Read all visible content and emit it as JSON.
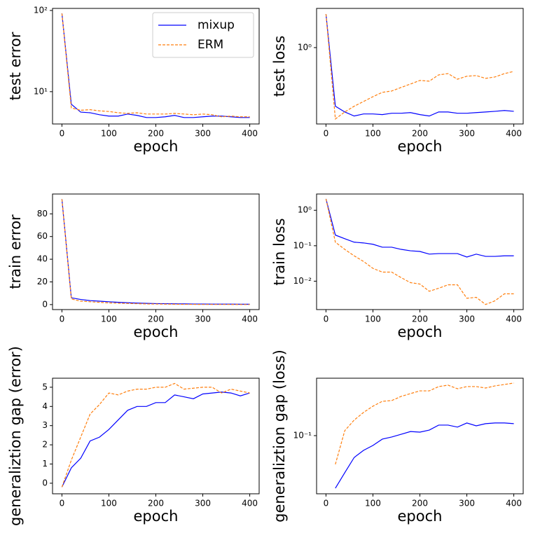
{
  "chart_data": [
    {
      "type": "line",
      "ylabel": "test error",
      "xlabel": "epoch",
      "log_y": true,
      "legend": "upper right",
      "x": [
        0,
        20,
        40,
        60,
        80,
        100,
        120,
        140,
        160,
        180,
        200,
        220,
        240,
        260,
        280,
        300,
        320,
        340,
        360,
        380,
        400
      ],
      "xlim": [
        -20,
        420
      ],
      "xticks": [
        0,
        100,
        200,
        300,
        400
      ],
      "ylim": [
        4,
        106
      ],
      "yticks": [
        {
          "value": 10,
          "label": "10¹"
        },
        {
          "value": 100,
          "label": "10²"
        }
      ],
      "series": [
        {
          "name": "mixup",
          "color": "#0000ff",
          "linestyle": "solid",
          "values": [
            92,
            7,
            5.6,
            5.5,
            5.2,
            5.0,
            5.0,
            5.3,
            5.1,
            4.8,
            4.8,
            4.9,
            5.1,
            4.8,
            4.8,
            4.9,
            5.0,
            5.0,
            4.9,
            4.8,
            4.8
          ]
        },
        {
          "name": "ERM",
          "color": "#ff7f0e",
          "linestyle": "dashed",
          "values": [
            92,
            6.3,
            5.9,
            6.0,
            5.8,
            5.7,
            5.5,
            5.4,
            5.5,
            5.3,
            5.3,
            5.3,
            5.4,
            5.3,
            5.2,
            5.3,
            5.2,
            4.9,
            5.0,
            4.9,
            4.9
          ]
        }
      ]
    },
    {
      "type": "line",
      "ylabel": "test loss",
      "xlabel": "epoch",
      "log_y": true,
      "x": [
        0,
        20,
        40,
        60,
        80,
        100,
        120,
        140,
        160,
        180,
        200,
        220,
        240,
        260,
        280,
        300,
        320,
        340,
        360,
        380,
        400
      ],
      "xlim": [
        -20,
        420
      ],
      "xticks": [
        0,
        100,
        200,
        300,
        400
      ],
      "ylim": [
        0.123,
        2.93
      ],
      "yticks": [
        {
          "value": 1,
          "label": "10⁰"
        }
      ],
      "series": [
        {
          "color": "#0000ff",
          "linestyle": "solid",
          "values": [
            2.51,
            0.2,
            0.171,
            0.153,
            0.162,
            0.162,
            0.159,
            0.165,
            0.165,
            0.168,
            0.159,
            0.153,
            0.171,
            0.171,
            0.165,
            0.165,
            0.168,
            0.171,
            0.174,
            0.178,
            0.174
          ]
        },
        {
          "color": "#ff7f0e",
          "linestyle": "dashed",
          "values": [
            2.51,
            0.141,
            0.171,
            0.2,
            0.228,
            0.26,
            0.293,
            0.304,
            0.335,
            0.368,
            0.406,
            0.398,
            0.473,
            0.49,
            0.42,
            0.456,
            0.464,
            0.43,
            0.447,
            0.49,
            0.52
          ]
        }
      ]
    },
    {
      "type": "line",
      "ylabel": "train error",
      "xlabel": "epoch",
      "log_y": false,
      "x": [
        0,
        20,
        40,
        60,
        80,
        100,
        120,
        140,
        160,
        180,
        200,
        220,
        240,
        260,
        280,
        300,
        320,
        340,
        360,
        380,
        400
      ],
      "xlim": [
        -20,
        420
      ],
      "xticks": [
        0,
        100,
        200,
        300,
        400
      ],
      "ylim": [
        -4.4,
        97.5
      ],
      "yticks": [
        0,
        20,
        40,
        60,
        80
      ],
      "series": [
        {
          "color": "#0000ff",
          "linestyle": "solid",
          "values": [
            93,
            6,
            4.5,
            3.5,
            3,
            2.5,
            2,
            1.6,
            1.3,
            1.1,
            0.9,
            0.8,
            0.7,
            0.6,
            0.5,
            0.5,
            0.4,
            0.4,
            0.4,
            0.3,
            0.3
          ]
        },
        {
          "color": "#ff7f0e",
          "linestyle": "dashed",
          "values": [
            93,
            5,
            3,
            2.5,
            2,
            1.5,
            1.2,
            1,
            0.8,
            0.6,
            0.5,
            0.4,
            0.3,
            0.2,
            0.2,
            0.1,
            0.1,
            0.1,
            0.1,
            0.05,
            0.05
          ]
        }
      ]
    },
    {
      "type": "line",
      "ylabel": "train loss",
      "xlabel": "epoch",
      "log_y": true,
      "x": [
        0,
        20,
        40,
        60,
        80,
        100,
        120,
        140,
        160,
        180,
        200,
        220,
        240,
        260,
        280,
        300,
        320,
        340,
        360,
        380,
        400
      ],
      "xlim": [
        -20,
        420
      ],
      "xticks": [
        0,
        100,
        200,
        300,
        400
      ],
      "ylim": [
        0.00158,
        2.88
      ],
      "yticks": [
        {
          "value": 0.01,
          "label": "10⁻²"
        },
        {
          "value": 0.1,
          "label": "10⁻¹"
        },
        {
          "value": 1,
          "label": "10⁰"
        }
      ],
      "series": [
        {
          "color": "#0000ff",
          "linestyle": "solid",
          "values": [
            2.1,
            0.2,
            0.158,
            0.126,
            0.12,
            0.11,
            0.091,
            0.091,
            0.079,
            0.072,
            0.069,
            0.058,
            0.06,
            0.06,
            0.06,
            0.048,
            0.058,
            0.05,
            0.05,
            0.052,
            0.052
          ]
        },
        {
          "color": "#ff7f0e",
          "linestyle": "dashed",
          "values": [
            2.1,
            0.126,
            0.079,
            0.052,
            0.036,
            0.023,
            0.018,
            0.018,
            0.0126,
            0.0091,
            0.0083,
            0.0052,
            0.0063,
            0.0079,
            0.0079,
            0.0033,
            0.0035,
            0.0022,
            0.0028,
            0.0044,
            0.0044
          ]
        }
      ]
    },
    {
      "type": "line",
      "ylabel": "generaliztion gap (error)",
      "xlabel": "epoch",
      "log_y": false,
      "x": [
        0,
        20,
        40,
        60,
        80,
        100,
        120,
        140,
        160,
        180,
        200,
        220,
        240,
        260,
        280,
        300,
        320,
        340,
        360,
        380,
        400
      ],
      "xlim": [
        -20,
        420
      ],
      "xticks": [
        0,
        100,
        200,
        300,
        400
      ],
      "ylim": [
        -0.55,
        5.47
      ],
      "yticks": [
        0,
        1,
        2,
        3,
        4,
        5
      ],
      "series": [
        {
          "color": "#0000ff",
          "linestyle": "solid",
          "values": [
            -0.2,
            0.8,
            1.3,
            2.2,
            2.4,
            2.8,
            3.3,
            3.8,
            4.0,
            4.0,
            4.2,
            4.2,
            4.6,
            4.5,
            4.4,
            4.65,
            4.7,
            4.75,
            4.7,
            4.55,
            4.7
          ]
        },
        {
          "color": "#ff7f0e",
          "linestyle": "dashed",
          "values": [
            -0.2,
            1.2,
            2.4,
            3.6,
            4.1,
            4.7,
            4.6,
            4.8,
            4.9,
            4.9,
            5.0,
            5.0,
            5.2,
            4.9,
            4.95,
            5.0,
            5.0,
            4.7,
            4.9,
            4.8,
            4.7
          ]
        }
      ]
    },
    {
      "type": "line",
      "ylabel": "generaliztion gap (loss)",
      "xlabel": "epoch",
      "log_y": true,
      "x": [
        0,
        20,
        40,
        60,
        80,
        100,
        120,
        140,
        160,
        180,
        200,
        220,
        240,
        260,
        280,
        300,
        320,
        340,
        360,
        380,
        400
      ],
      "xlim": [
        -20,
        420
      ],
      "xticks": [
        0,
        100,
        200,
        300,
        400
      ],
      "ylim": [
        0.0176,
        0.556
      ],
      "yticks": [
        {
          "value": 0.1,
          "label": "10⁻¹"
        }
      ],
      "series": [
        {
          "color": "#0000ff",
          "linestyle": "solid",
          "values": [
            null,
            0.0208,
            0.033,
            0.052,
            0.0644,
            0.0746,
            0.0901,
            0.096,
            0.104,
            0.113,
            0.111,
            0.118,
            0.137,
            0.137,
            0.129,
            0.146,
            0.134,
            0.143,
            0.146,
            0.146,
            0.143
          ]
        },
        {
          "color": "#ff7f0e",
          "linestyle": "dashed",
          "values": [
            null,
            0.0424,
            0.116,
            0.159,
            0.2,
            0.241,
            0.279,
            0.285,
            0.323,
            0.351,
            0.381,
            0.381,
            0.433,
            0.452,
            0.406,
            0.433,
            0.433,
            0.415,
            0.442,
            0.461,
            0.481
          ]
        }
      ]
    }
  ]
}
